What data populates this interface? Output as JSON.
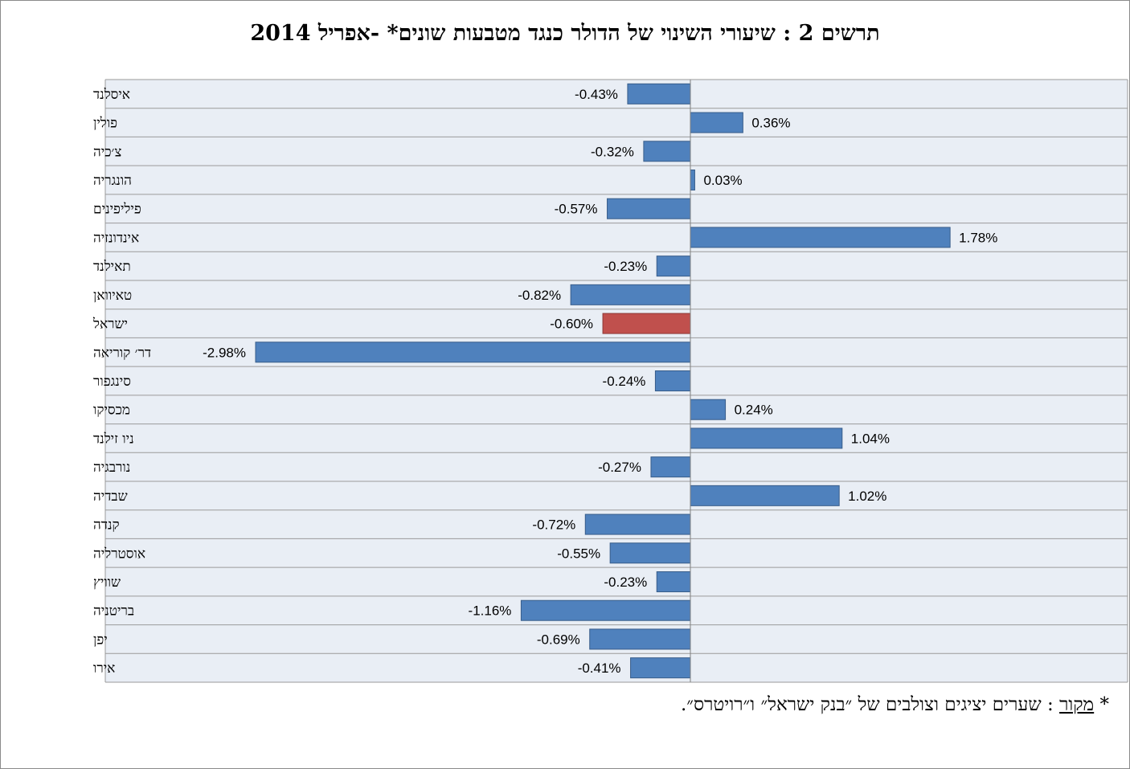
{
  "title": "תרשים 2 : שיעורי השינוי של הדולר כנגד מטבעות שונים* -אפריל 2014",
  "note": {
    "prefix": "* ",
    "source_label": "מקור",
    "text": " : שערים יציגים וצולבים של ״בנק ישראל״ ו״רויטרס״."
  },
  "colors": {
    "bar": "#4f81bd",
    "highlight_bar": "#c0504d",
    "plot_background": "#e9eef5",
    "grid": "#9a9a9a"
  },
  "chart_data": {
    "type": "bar",
    "orientation": "horizontal",
    "unit": "%",
    "xlim": [
      -3.5,
      3.5
    ],
    "grid": true,
    "highlight_category": "ישראל",
    "categories": [
      "איסלנד",
      "פולין",
      "צ׳כיה",
      "הונגריה",
      "פיליפינים",
      "אינדונזיה",
      "תאילנד",
      "טאיוואן",
      "ישראל",
      "דר׳ קוריאה",
      "סינגפור",
      "מכסיקו",
      "ניו זילנד",
      "נורבגיה",
      "שבדיה",
      "קנדה",
      "אוסטרליה",
      "שוויץ",
      "בריטניה",
      "יפן",
      "אירו"
    ],
    "values": [
      -0.43,
      0.36,
      -0.32,
      0.03,
      -0.57,
      1.78,
      -0.23,
      -0.82,
      -0.6,
      -2.98,
      -0.24,
      0.24,
      1.04,
      -0.27,
      1.02,
      -0.72,
      -0.55,
      -0.23,
      -1.16,
      -0.69,
      -0.41
    ],
    "labels": [
      "-0.43%",
      "0.36%",
      "-0.32%",
      "0.03%",
      "-0.57%",
      "1.78%",
      "-0.23%",
      "-0.82%",
      "-0.60%",
      "-2.98%",
      "-0.24%",
      "0.24%",
      "1.04%",
      "-0.27%",
      "1.02%",
      "-0.72%",
      "-0.55%",
      "-0.23%",
      "-1.16%",
      "-0.69%",
      "-0.41%"
    ]
  }
}
